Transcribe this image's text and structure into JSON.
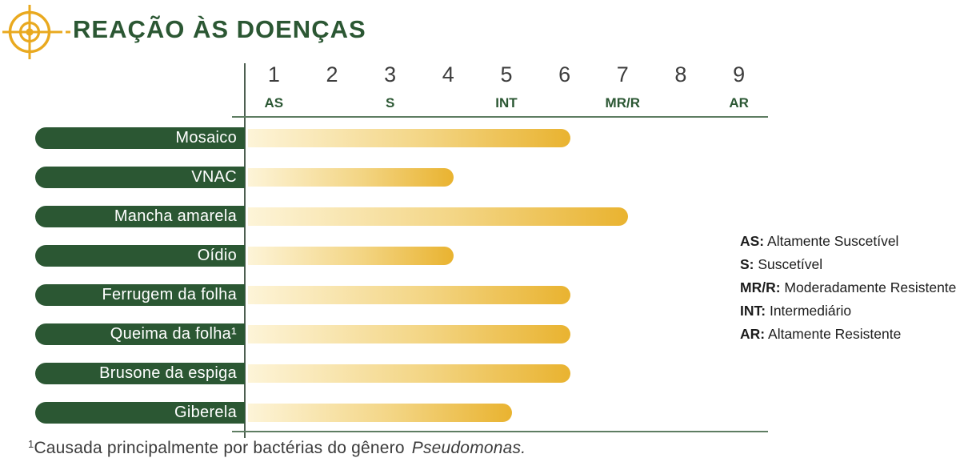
{
  "header": {
    "title": "REAÇÃO ÀS DOENÇAS",
    "icon": "target-crosshair"
  },
  "chart_data": {
    "type": "bar",
    "orientation": "horizontal",
    "title": "REAÇÃO ÀS DOENÇAS",
    "categories": [
      "Mosaico",
      "VNAC",
      "Mancha amarela",
      "Oídio",
      "Ferrugem da folha",
      "Queima da folha¹",
      "Brusone da espiga",
      "Giberela"
    ],
    "values": [
      6,
      4,
      7,
      4,
      6,
      6,
      6,
      5
    ],
    "xlim": [
      0.5,
      9.5
    ],
    "x_ticks": [
      "1",
      "2",
      "3",
      "4",
      "5",
      "6",
      "7",
      "8",
      "9"
    ],
    "x_zone_labels": [
      {
        "label": "AS",
        "at": 1
      },
      {
        "label": "S",
        "at": 3
      },
      {
        "label": "INT",
        "at": 5
      },
      {
        "label": "MR/R",
        "at": 7
      },
      {
        "label": "AR",
        "at": 9
      }
    ],
    "grid": false,
    "legend_position": "right",
    "bar_gradient": [
      "#FDF4D8",
      "#E9B330"
    ]
  },
  "legend": {
    "items": [
      {
        "abbr": "AS:",
        "text": "Altamente Suscetível"
      },
      {
        "abbr": "S:",
        "text": "Suscetível"
      },
      {
        "abbr": "MR/R:",
        "text": "Moderadamente Resistente"
      },
      {
        "abbr": "INT:",
        "text": "Intermediário"
      },
      {
        "abbr": "AR:",
        "text": "Altamente Resistente"
      }
    ]
  },
  "footnote": {
    "sup": "1",
    "text": "Causada principalmente por bactérias do gênero",
    "italic": "Pseudomonas."
  },
  "colors": {
    "brand_green": "#2B5733",
    "gold": "#E9A91F",
    "bar_start": "#FDF4D8",
    "bar_end": "#E9B330",
    "line_green": "#5E7D62"
  }
}
